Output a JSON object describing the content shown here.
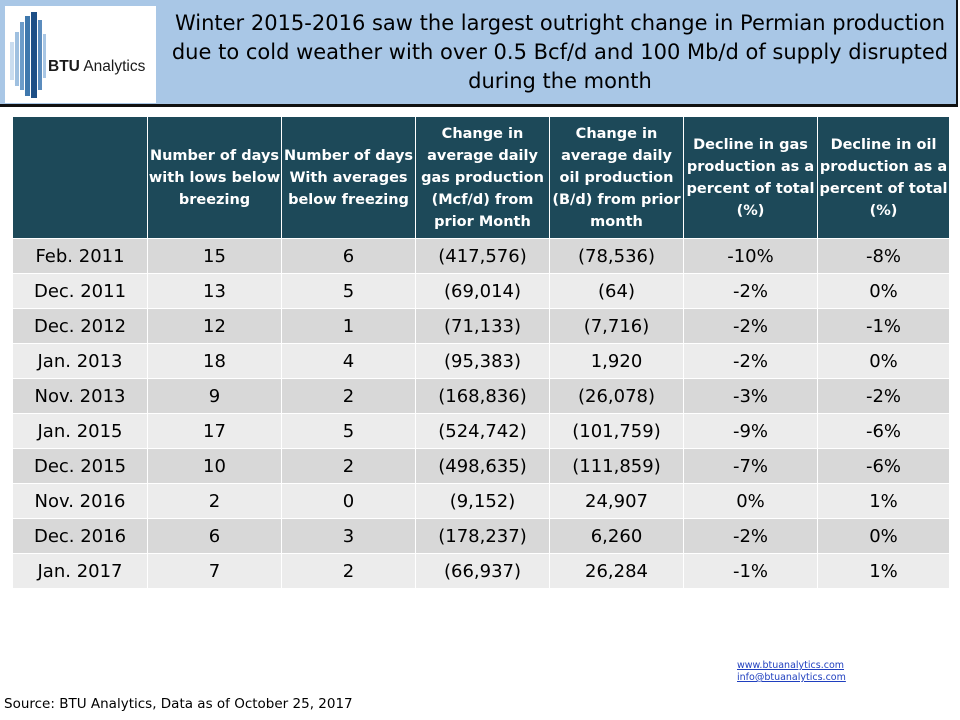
{
  "header": {
    "logo_text_bold": "BTU",
    "logo_text_rest": "Analytics",
    "headline": "Winter 2015-2016 saw the largest outright change in Permian production due to cold weather with over 0.5 Bcf/d and 100 Mb/d of supply disrupted during the month"
  },
  "table": {
    "columns": [
      "",
      "Number of days with lows below breezing",
      "Number of days With averages below freezing",
      "Change in average daily gas production (Mcf/d) from prior Month",
      "Change in average daily oil production (B/d) from prior month",
      "Decline in gas production as a percent of total (%)",
      "Decline in oil production as a percent of total (%)"
    ],
    "rows": [
      [
        "Feb. 2011",
        "15",
        "6",
        "(417,576)",
        "(78,536)",
        "-10%",
        "-8%"
      ],
      [
        "Dec. 2011",
        "13",
        "5",
        "(69,014)",
        "(64)",
        "-2%",
        "0%"
      ],
      [
        "Dec. 2012",
        "12",
        "1",
        "(71,133)",
        "(7,716)",
        "-2%",
        "-1%"
      ],
      [
        "Jan. 2013",
        "18",
        "4",
        "(95,383)",
        "1,920",
        "-2%",
        "0%"
      ],
      [
        "Nov. 2013",
        "9",
        "2",
        "(168,836)",
        "(26,078)",
        "-3%",
        "-2%"
      ],
      [
        "Jan. 2015",
        "17",
        "5",
        "(524,742)",
        "(101,759)",
        "-9%",
        "-6%"
      ],
      [
        "Dec. 2015",
        "10",
        "2",
        "(498,635)",
        "(111,859)",
        "-7%",
        "-6%"
      ],
      [
        "Nov. 2016",
        "2",
        "0",
        "(9,152)",
        "24,907",
        "0%",
        "1%"
      ],
      [
        "Dec. 2016",
        "6",
        "3",
        "(178,237)",
        "6,260",
        "-2%",
        "0%"
      ],
      [
        "Jan. 2017",
        "7",
        "2",
        "(66,937)",
        "26,284",
        "-1%",
        "1%"
      ]
    ]
  },
  "footer": {
    "website": "www.btuanalytics.com",
    "email": "info@btuanalytics.com",
    "source": "Source:  BTU Analytics, Data as of October 25, 2017"
  },
  "colors": {
    "banner": "#a9c7e6",
    "header_row": "#1d4959",
    "row_dark": "#d8d8d8",
    "row_light": "#ececec"
  }
}
